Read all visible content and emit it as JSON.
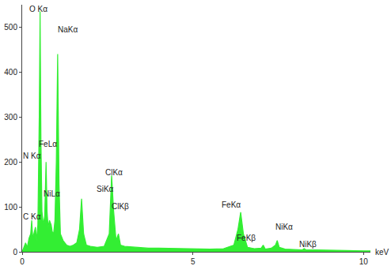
{
  "chart_data": {
    "type": "line",
    "x_label": "keV",
    "x": [
      0.0,
      0.1,
      0.15,
      0.2,
      0.25,
      0.28,
      0.31,
      0.35,
      0.39,
      0.42,
      0.46,
      0.5,
      0.525,
      0.55,
      0.58,
      0.62,
      0.66,
      0.7,
      0.73,
      0.76,
      0.8,
      0.85,
      0.88,
      0.92,
      0.96,
      1.0,
      1.04,
      1.08,
      1.12,
      1.2,
      1.3,
      1.4,
      1.5,
      1.6,
      1.68,
      1.74,
      1.8,
      1.88,
      2.0,
      2.2,
      2.4,
      2.55,
      2.62,
      2.68,
      2.75,
      2.82,
      2.88,
      3.0,
      3.3,
      3.7,
      4.0,
      4.5,
      5.0,
      5.5,
      5.9,
      6.2,
      6.32,
      6.4,
      6.48,
      6.6,
      6.8,
      7.0,
      7.06,
      7.12,
      7.3,
      7.42,
      7.47,
      7.53,
      7.7,
      8.0,
      8.2,
      8.26,
      8.32,
      8.6,
      9.0,
      9.5,
      10.0,
      10.2
    ],
    "values": [
      0,
      20,
      10,
      30,
      40,
      70,
      30,
      45,
      55,
      25,
      60,
      300,
      535,
      250,
      90,
      60,
      80,
      200,
      90,
      55,
      70,
      60,
      45,
      40,
      70,
      200,
      440,
      150,
      40,
      25,
      15,
      12,
      15,
      20,
      50,
      118,
      40,
      15,
      12,
      10,
      12,
      40,
      170,
      90,
      25,
      40,
      15,
      12,
      10,
      8,
      8,
      7,
      6,
      6,
      7,
      15,
      50,
      88,
      40,
      10,
      7,
      8,
      15,
      6,
      8,
      15,
      25,
      10,
      6,
      5,
      4,
      7,
      4,
      4,
      3,
      3,
      2,
      2
    ],
    "color": "#33ee33",
    "xlim": [
      0,
      10.2
    ],
    "ylim": [
      0,
      550
    ],
    "xticks": [
      0,
      5,
      10
    ],
    "yticks": [
      0,
      100,
      200,
      300,
      400,
      500
    ],
    "grid": false,
    "annotations": [
      {
        "text": "O Kα",
        "x": 0.48,
        "y": 541
      },
      {
        "text": "NaKα",
        "x": 1.34,
        "y": 495
      },
      {
        "text": "FeLα",
        "x": 0.76,
        "y": 240
      },
      {
        "text": "N Kα",
        "x": 0.3,
        "y": 213
      },
      {
        "text": "NiLα",
        "x": 0.88,
        "y": 130
      },
      {
        "text": "C Kα",
        "x": 0.3,
        "y": 78
      },
      {
        "text": "SiKα",
        "x": 2.44,
        "y": 139
      },
      {
        "text": "ClKα",
        "x": 2.7,
        "y": 177
      },
      {
        "text": "ClKβ",
        "x": 2.88,
        "y": 101
      },
      {
        "text": "FeKα",
        "x": 6.13,
        "y": 104
      },
      {
        "text": "FeKβ",
        "x": 6.57,
        "y": 31
      },
      {
        "text": "NiKα",
        "x": 7.67,
        "y": 56
      },
      {
        "text": "NiKβ",
        "x": 8.36,
        "y": 16
      }
    ]
  }
}
